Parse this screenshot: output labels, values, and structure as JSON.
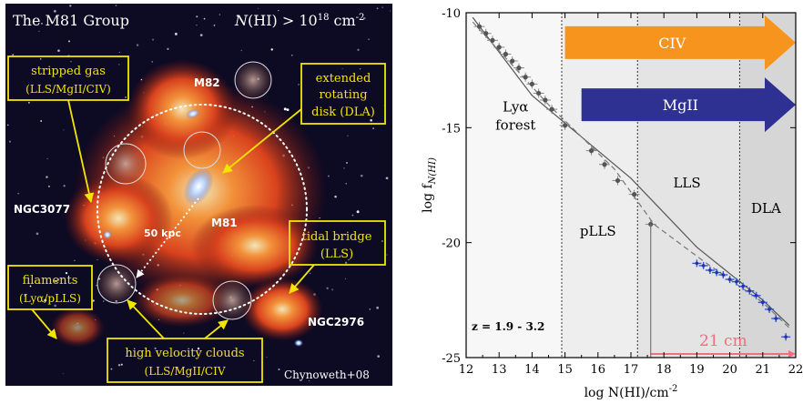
{
  "left_panel": {
    "title": "The M81 Group",
    "density_prefix": "N",
    "density_mid": "(HI) > 10",
    "density_exp": "18",
    "density_unit": " cm",
    "density_unit_exp": "-2",
    "credit": "Chynoweth+08",
    "scale_bar": "50 kpc",
    "galaxies": {
      "m82": "M82",
      "m81": "M81",
      "ngc3077": "NGC3077",
      "ngc2976": "NGC2976"
    },
    "callouts": {
      "stripped_gas": [
        "stripped gas",
        "(LLS/MgII/CIV)"
      ],
      "extended_disk": [
        "extended",
        "rotating",
        "disk (DLA)"
      ],
      "tidal_bridge": [
        "tidal bridge",
        "(LLS)"
      ],
      "filaments": [
        "filaments",
        "(Lyα/pLLS)"
      ],
      "hvc": [
        "high velocity clouds",
        "(LLS/MgII/CIV"
      ]
    }
  },
  "chart_data": {
    "type": "scatter",
    "xlabel": "log N(HI)/cm",
    "xlabel_exp": "-2",
    "ylabel": "log f",
    "ylabel_sub": "N(HI)",
    "xlim": [
      12,
      22
    ],
    "ylim": [
      -25,
      -10
    ],
    "xticks": [
      12,
      13,
      14,
      15,
      16,
      17,
      18,
      19,
      20,
      21,
      22
    ],
    "yticks": [
      -10,
      -15,
      -20,
      -25
    ],
    "regions": [
      {
        "name": "Lyα forest",
        "label": [
          "Lyα",
          "forest"
        ],
        "x0": 12,
        "x1": 14.9,
        "shade": "#f7f7f7"
      },
      {
        "name": "pLLS",
        "label": [
          "pLLS"
        ],
        "x0": 14.9,
        "x1": 17.2,
        "shade": "#eeeeee"
      },
      {
        "name": "LLS",
        "label": [
          "LLS"
        ],
        "x0": 17.2,
        "x1": 20.3,
        "shade": "#e4e4e4"
      },
      {
        "name": "DLA",
        "label": [
          "DLA"
        ],
        "x0": 20.3,
        "x1": 22,
        "shade": "#d6d6d6"
      }
    ],
    "arrows": [
      {
        "label": "CIV",
        "x_start": 15.0,
        "y_level": -11.3,
        "color": "#f7941d"
      },
      {
        "label": "MgII",
        "x_start": 15.5,
        "y_level": -14.0,
        "color": "#2e3192"
      }
    ],
    "range_21cm": {
      "label": "21 cm",
      "x_start": 17.6,
      "x_end": 22,
      "color": "#f26d7d"
    },
    "redshift_note": "z = 1.9 - 3.2",
    "fit_line": [
      [
        12.2,
        -10.2
      ],
      [
        14.0,
        -13.6
      ],
      [
        17.0,
        -17.2
      ],
      [
        19.0,
        -20.2
      ],
      [
        21.0,
        -22.5
      ],
      [
        21.8,
        -23.6
      ]
    ],
    "model_line": [
      [
        12.2,
        -10.4
      ],
      [
        14.5,
        -14.0
      ],
      [
        16.5,
        -16.8
      ],
      [
        17.7,
        -19.2
      ],
      [
        19.2,
        -20.8
      ],
      [
        21.0,
        -22.6
      ],
      [
        21.8,
        -23.7
      ]
    ],
    "gray_points": [
      {
        "x": 12.4,
        "y": -10.6
      },
      {
        "x": 12.6,
        "y": -10.9
      },
      {
        "x": 12.8,
        "y": -11.2
      },
      {
        "x": 13.0,
        "y": -11.5
      },
      {
        "x": 13.2,
        "y": -11.8
      },
      {
        "x": 13.4,
        "y": -12.1
      },
      {
        "x": 13.6,
        "y": -12.4
      },
      {
        "x": 13.8,
        "y": -12.8
      },
      {
        "x": 14.0,
        "y": -13.1
      },
      {
        "x": 14.2,
        "y": -13.5
      },
      {
        "x": 14.4,
        "y": -13.8
      },
      {
        "x": 14.6,
        "y": -14.2
      },
      {
        "x": 15.0,
        "y": -14.9
      },
      {
        "x": 15.8,
        "y": -16.0
      },
      {
        "x": 16.2,
        "y": -16.6
      },
      {
        "x": 16.6,
        "y": -17.3
      },
      {
        "x": 17.1,
        "y": -17.9
      },
      {
        "x": 17.6,
        "y": -19.2
      }
    ],
    "blue_points": [
      {
        "x": 19.0,
        "y": -20.9
      },
      {
        "x": 19.2,
        "y": -21.0
      },
      {
        "x": 19.4,
        "y": -21.2
      },
      {
        "x": 19.6,
        "y": -21.3
      },
      {
        "x": 19.8,
        "y": -21.4
      },
      {
        "x": 20.0,
        "y": -21.6
      },
      {
        "x": 20.2,
        "y": -21.7
      },
      {
        "x": 20.4,
        "y": -21.9
      },
      {
        "x": 20.6,
        "y": -22.1
      },
      {
        "x": 20.8,
        "y": -22.3
      },
      {
        "x": 21.0,
        "y": -22.6
      },
      {
        "x": 21.2,
        "y": -22.9
      },
      {
        "x": 21.4,
        "y": -23.3
      },
      {
        "x": 21.7,
        "y": -24.1
      }
    ]
  }
}
